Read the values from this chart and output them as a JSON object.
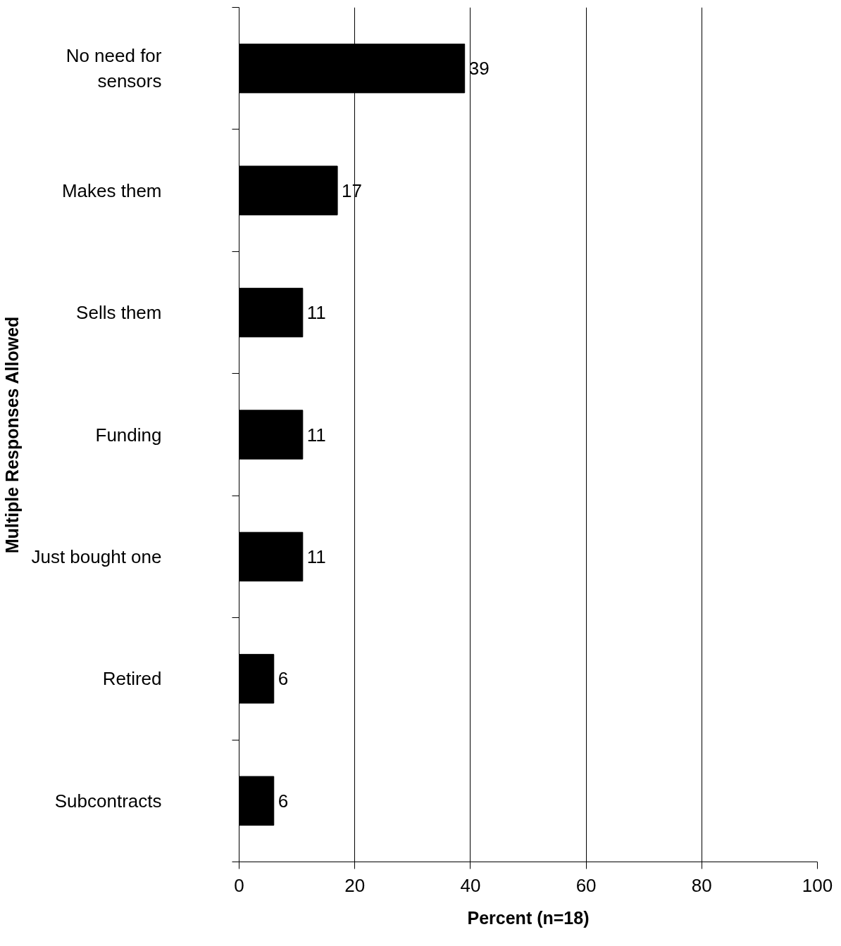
{
  "chart_data": {
    "type": "bar",
    "orientation": "horizontal",
    "xlabel": "Percent (n=18)",
    "ylabel": "Multiple Responses Allowed",
    "categories": [
      "No need for sensors",
      "Makes them",
      "Sells them",
      "Funding",
      "Just bought one",
      "Retired",
      "Subcontracts"
    ],
    "values": [
      39,
      17,
      11,
      11,
      11,
      6,
      6
    ],
    "color": "#000000",
    "xlim": [
      0,
      100
    ],
    "xticks": [
      0,
      20,
      40,
      60,
      80,
      100
    ],
    "grid": "x",
    "data_labels": true
  }
}
